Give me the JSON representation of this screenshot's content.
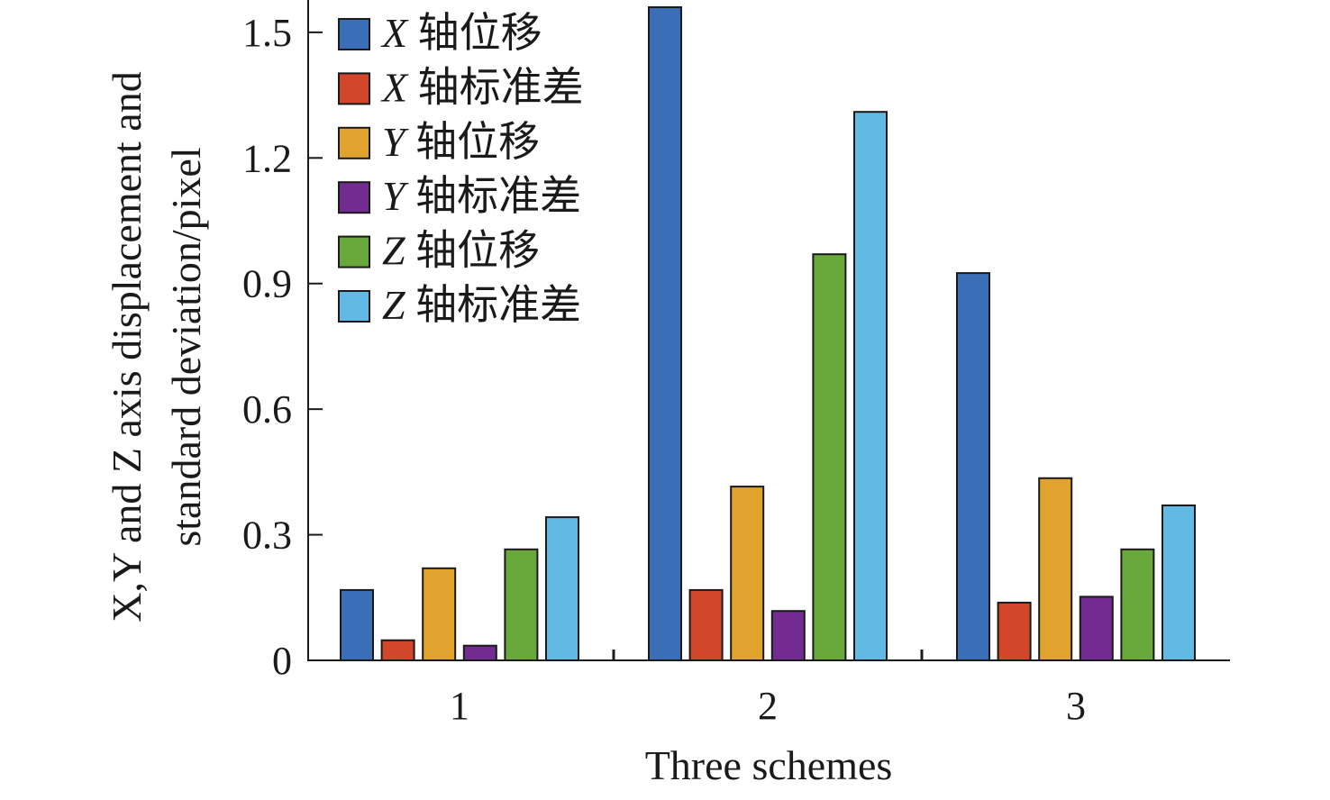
{
  "chart_data": {
    "type": "bar",
    "title": "",
    "xlabel": "Three schemes",
    "ylabel": [
      "X,Y and Z axis displacement and",
      "standard deviation/pixel"
    ],
    "ylim": [
      0,
      1.56
    ],
    "yticks": [
      "0",
      "0.3",
      "0.6",
      "0.9",
      "1.2",
      "1.5"
    ],
    "ytick_values": [
      0,
      0.3,
      0.6,
      0.9,
      1.2,
      1.5
    ],
    "categories": [
      "1",
      "2",
      "3"
    ],
    "grid": false,
    "legend_position": "top-left",
    "series": [
      {
        "name": "X 轴位移",
        "var": "X",
        "text": " 轴位移",
        "color": "#3a6fb8",
        "values": [
          0.168,
          1.56,
          0.925
        ]
      },
      {
        "name": "X 轴标准差",
        "var": "X",
        "text": " 轴标准差",
        "color": "#d2462a",
        "values": [
          0.048,
          0.168,
          0.138
        ]
      },
      {
        "name": "Y 轴位移",
        "var": "Y",
        "text": " 轴位移",
        "color": "#e0a32e",
        "values": [
          0.22,
          0.415,
          0.435
        ]
      },
      {
        "name": "Y 轴标准差",
        "var": "Y",
        "text": " 轴标准差",
        "color": "#722b91",
        "values": [
          0.035,
          0.118,
          0.152
        ]
      },
      {
        "name": "Z 轴位移",
        "var": "Z",
        "text": " 轴位移",
        "color": "#69a83a",
        "values": [
          0.265,
          0.97,
          0.265
        ]
      },
      {
        "name": "Z 轴标准差",
        "var": "Z",
        "text": " 轴标准差",
        "color": "#61b9e4",
        "values": [
          0.342,
          1.31,
          0.37
        ]
      }
    ]
  }
}
